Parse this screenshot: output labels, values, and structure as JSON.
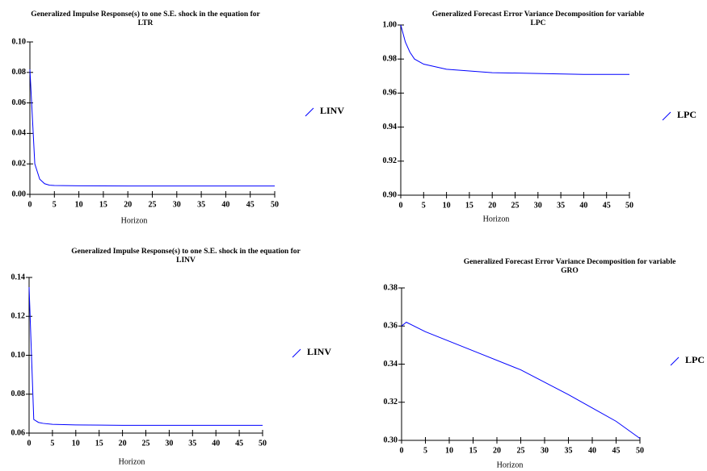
{
  "chart_data": [
    {
      "type": "line",
      "title": [
        "Generalized Impulse Response(s) to one S.E. shock in the equation for",
        "LTR"
      ],
      "x_label": "Horizon",
      "x": [
        0,
        1,
        2,
        3,
        4,
        5,
        10,
        20,
        30,
        40,
        50
      ],
      "series": [
        {
          "name": "LINV",
          "color": "#0000ff",
          "values": [
            0.082,
            0.02,
            0.01,
            0.007,
            0.006,
            0.0058,
            0.0056,
            0.0055,
            0.0055,
            0.0055,
            0.0055
          ]
        }
      ],
      "xlim": [
        0,
        50
      ],
      "xticks": [
        0,
        5,
        10,
        15,
        20,
        25,
        30,
        35,
        40,
        45,
        50
      ],
      "ylim": [
        0,
        0.1
      ],
      "yticks": [
        {
          "value": 0,
          "label": "0.00"
        },
        0.02,
        0.04,
        0.06,
        0.08,
        {
          "value": 0.1,
          "label": "0.10"
        }
      ]
    },
    {
      "type": "line",
      "title": [
        "Generalized Forecast Error Variance Decomposition for variable",
        "LPC"
      ],
      "x_label": "Horizon",
      "x": [
        0,
        1,
        2,
        3,
        5,
        10,
        20,
        30,
        40,
        50
      ],
      "series": [
        {
          "name": "LPC",
          "color": "#0000ff",
          "values": [
            1.0,
            0.99,
            0.984,
            0.98,
            0.977,
            0.974,
            0.972,
            0.9715,
            0.971,
            0.971
          ]
        }
      ],
      "xlim": [
        0,
        50
      ],
      "xticks": [
        0,
        5,
        10,
        15,
        20,
        25,
        30,
        35,
        40,
        45,
        50
      ],
      "ylim": [
        0.9,
        1.0
      ],
      "yticks": [
        {
          "value": 0.9,
          "label": "0.90"
        },
        0.92,
        0.94,
        0.96,
        0.98,
        {
          "value": 1.0,
          "label": "1.00"
        }
      ]
    },
    {
      "type": "line",
      "title": [
        "Generalized Impulse Response(s) to one S.E. shock in the equation for",
        "LINV"
      ],
      "x_label": "Horizon",
      "x": [
        0,
        1,
        2,
        3,
        5,
        10,
        20,
        30,
        40,
        50
      ],
      "series": [
        {
          "name": "LINV",
          "color": "#0000ff",
          "values": [
            0.135,
            0.067,
            0.0655,
            0.065,
            0.0645,
            0.0642,
            0.064,
            0.064,
            0.064,
            0.064
          ]
        }
      ],
      "xlim": [
        0,
        50
      ],
      "xticks": [
        0,
        5,
        10,
        15,
        20,
        25,
        30,
        35,
        40,
        45,
        50
      ],
      "ylim": [
        0.06,
        0.14
      ],
      "yticks": [
        0.06,
        0.08,
        {
          "value": 0.1,
          "label": "0.10"
        },
        0.12,
        0.14
      ]
    },
    {
      "type": "line",
      "title": [
        "Generalized Forecast Error Variance Decomposition for variable",
        "GRO"
      ],
      "x_label": "Horizon",
      "x": [
        0,
        1,
        5,
        15,
        25,
        35,
        45,
        50
      ],
      "series": [
        {
          "name": "LPC",
          "color": "#0000ff",
          "values": [
            0.36,
            0.362,
            0.357,
            0.347,
            0.337,
            0.324,
            0.31,
            0.301
          ]
        }
      ],
      "xlim": [
        0,
        50
      ],
      "xticks": [
        0,
        5,
        10,
        15,
        20,
        25,
        30,
        35,
        40,
        45,
        50
      ],
      "ylim": [
        0.3,
        0.38
      ],
      "yticks": [
        {
          "value": 0.3,
          "label": "0.30"
        },
        0.32,
        0.34,
        0.36,
        0.38
      ]
    }
  ]
}
